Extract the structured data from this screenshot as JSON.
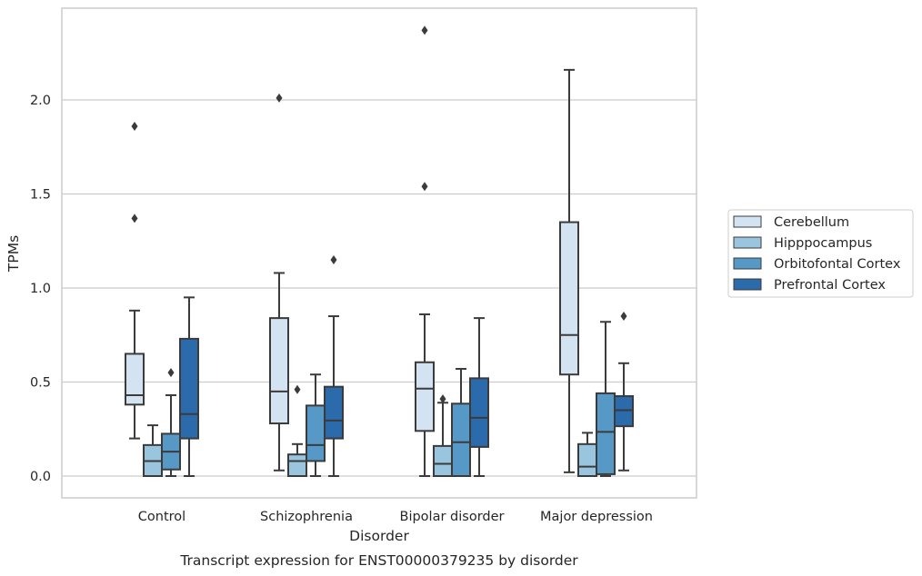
{
  "chart_data": {
    "type": "box",
    "caption": "Transcript expression for ENST00000379235 by disorder",
    "xlabel": "Disorder",
    "ylabel": "TPMs",
    "ylim": [
      -0.11,
      2.49
    ],
    "yticks": [
      "0.0",
      "0.5",
      "1.0",
      "1.5",
      "2.0"
    ],
    "grid": "horizontal",
    "legend_position": "right",
    "categories": [
      "Control",
      "Schizophrenia",
      "Bipolar disorder",
      "Major depression"
    ],
    "series": [
      {
        "name": "Cerebellum",
        "color": "#d3e3f2",
        "boxes": [
          {
            "whisker_low": 0.2,
            "q1": 0.38,
            "median": 0.43,
            "q3": 0.65,
            "whisker_high": 0.88,
            "outliers": [
              1.37,
              1.86
            ]
          },
          {
            "whisker_low": 0.03,
            "q1": 0.28,
            "median": 0.45,
            "q3": 0.84,
            "whisker_high": 1.08,
            "outliers": [
              2.01
            ]
          },
          {
            "whisker_low": 0.0,
            "q1": 0.24,
            "median": 0.465,
            "q3": 0.605,
            "whisker_high": 0.86,
            "outliers": [
              1.54,
              2.37
            ]
          },
          {
            "whisker_low": 0.02,
            "q1": 0.54,
            "median": 0.75,
            "q3": 1.35,
            "whisker_high": 2.16,
            "outliers": []
          }
        ]
      },
      {
        "name": "Hipppocampus",
        "color": "#9ac5de",
        "boxes": [
          {
            "whisker_low": 0.0,
            "q1": 0.0,
            "median": 0.08,
            "q3": 0.165,
            "whisker_high": 0.27,
            "outliers": []
          },
          {
            "whisker_low": 0.0,
            "q1": 0.0,
            "median": 0.08,
            "q3": 0.115,
            "whisker_high": 0.17,
            "outliers": [
              0.46
            ]
          },
          {
            "whisker_low": 0.0,
            "q1": 0.0,
            "median": 0.065,
            "q3": 0.16,
            "whisker_high": 0.39,
            "outliers": [
              0.41
            ]
          },
          {
            "whisker_low": 0.0,
            "q1": 0.0,
            "median": 0.05,
            "q3": 0.17,
            "whisker_high": 0.23,
            "outliers": []
          }
        ]
      },
      {
        "name": "Orbitofontal Cortex",
        "color": "#5699c6",
        "boxes": [
          {
            "whisker_low": 0.0,
            "q1": 0.035,
            "median": 0.13,
            "q3": 0.225,
            "whisker_high": 0.43,
            "outliers": [
              0.55
            ]
          },
          {
            "whisker_low": 0.0,
            "q1": 0.08,
            "median": 0.165,
            "q3": 0.375,
            "whisker_high": 0.54,
            "outliers": []
          },
          {
            "whisker_low": 0.0,
            "q1": 0.0,
            "median": 0.18,
            "q3": 0.385,
            "whisker_high": 0.57,
            "outliers": []
          },
          {
            "whisker_low": 0.0,
            "q1": 0.01,
            "median": 0.235,
            "q3": 0.44,
            "whisker_high": 0.82,
            "outliers": []
          }
        ]
      },
      {
        "name": "Prefrontal Cortex",
        "color": "#2b6aab",
        "boxes": [
          {
            "whisker_low": 0.0,
            "q1": 0.2,
            "median": 0.33,
            "q3": 0.73,
            "whisker_high": 0.95,
            "outliers": []
          },
          {
            "whisker_low": 0.0,
            "q1": 0.2,
            "median": 0.295,
            "q3": 0.475,
            "whisker_high": 0.85,
            "outliers": [
              1.15
            ]
          },
          {
            "whisker_low": 0.0,
            "q1": 0.155,
            "median": 0.31,
            "q3": 0.52,
            "whisker_high": 0.84,
            "outliers": []
          },
          {
            "whisker_low": 0.03,
            "q1": 0.265,
            "median": 0.35,
            "q3": 0.425,
            "whisker_high": 0.6,
            "outliers": [
              0.85
            ]
          }
        ]
      }
    ]
  }
}
